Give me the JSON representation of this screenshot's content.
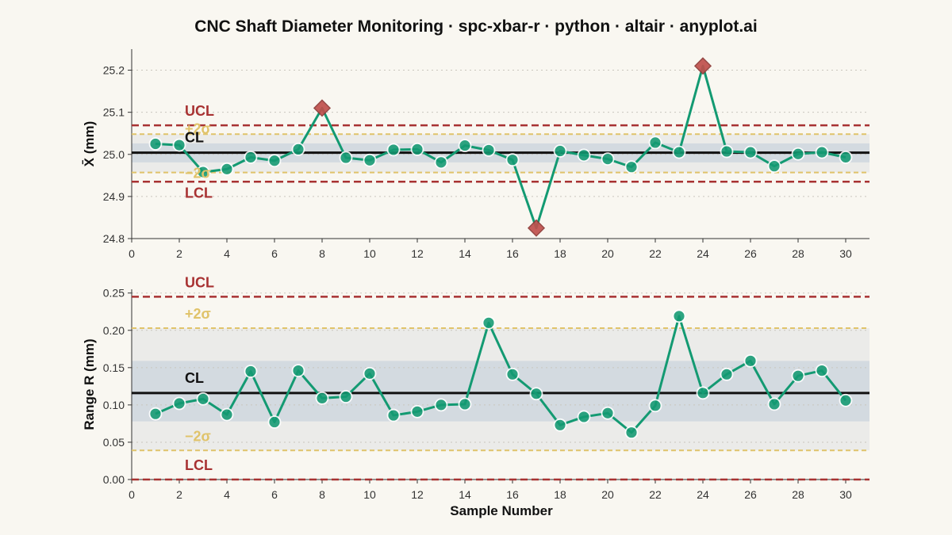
{
  "title": "CNC Shaft Diameter Monitoring · spc-xbar-r · python · altair · anyplot.ai",
  "colors": {
    "background": "#f9f7f1",
    "series": "#139a72",
    "out_of_control": "#c0504d",
    "limit": "#a83232",
    "sigma": "#e0c36a",
    "center": "#111111",
    "band_1sigma": "#d3dae0",
    "band_2sigma": "#ebebe9"
  },
  "chart_data": [
    {
      "type": "line",
      "panel": "xbar",
      "xlabel": "",
      "ylabel": "X̄ (mm)",
      "xlim": [
        0,
        31
      ],
      "ylim": [
        24.8,
        25.25
      ],
      "xticks": [
        0,
        2,
        4,
        6,
        8,
        10,
        12,
        14,
        16,
        18,
        20,
        22,
        24,
        26,
        28,
        30
      ],
      "yticks": [
        24.8,
        24.9,
        25.0,
        25.1,
        25.2
      ],
      "grid": "horizontal dotted",
      "x": [
        1,
        2,
        3,
        4,
        5,
        6,
        7,
        8,
        9,
        10,
        11,
        12,
        13,
        14,
        15,
        16,
        17,
        18,
        19,
        20,
        21,
        22,
        23,
        24,
        25,
        26,
        27,
        28,
        29,
        30
      ],
      "values": [
        25.025,
        25.022,
        24.958,
        24.965,
        24.993,
        24.985,
        25.012,
        25.11,
        24.992,
        24.986,
        25.011,
        25.012,
        24.981,
        25.021,
        25.01,
        24.987,
        24.825,
        25.008,
        24.998,
        24.989,
        24.97,
        25.028,
        25.005,
        25.21,
        25.007,
        25.005,
        24.972,
        25.001,
        25.005,
        24.993
      ],
      "out_of_control_x": [
        8,
        17,
        24
      ],
      "limits": {
        "ucl": {
          "label": "UCL",
          "value": 25.069
        },
        "plus2sigma": {
          "label": "+2σ",
          "value": 25.048
        },
        "cl": {
          "label": "CL",
          "value": 25.004
        },
        "minus2sigma": {
          "label": "−2σ",
          "value": 24.957
        },
        "lcl": {
          "label": "LCL",
          "value": 24.935
        }
      },
      "band_1sigma": [
        24.981,
        25.026
      ],
      "band_2sigma": [
        24.957,
        25.048
      ]
    },
    {
      "type": "line",
      "panel": "range",
      "xlabel": "Sample Number",
      "ylabel": "Range R (mm)",
      "xlim": [
        0,
        31
      ],
      "ylim": [
        0,
        0.255
      ],
      "xticks": [
        0,
        2,
        4,
        6,
        8,
        10,
        12,
        14,
        16,
        18,
        20,
        22,
        24,
        26,
        28,
        30
      ],
      "yticks": [
        "0.00",
        "0.05",
        "0.10",
        "0.15",
        "0.20",
        "0.25"
      ],
      "grid": "horizontal dotted",
      "x": [
        1,
        2,
        3,
        4,
        5,
        6,
        7,
        8,
        9,
        10,
        11,
        12,
        13,
        14,
        15,
        16,
        17,
        18,
        19,
        20,
        21,
        22,
        23,
        24,
        25,
        26,
        27,
        28,
        29,
        30
      ],
      "values": [
        0.088,
        0.102,
        0.108,
        0.087,
        0.145,
        0.077,
        0.146,
        0.109,
        0.111,
        0.142,
        0.086,
        0.091,
        0.1,
        0.101,
        0.21,
        0.141,
        0.115,
        0.073,
        0.084,
        0.089,
        0.063,
        0.099,
        0.219,
        0.116,
        0.141,
        0.159,
        0.101,
        0.139,
        0.146,
        0.106
      ],
      "out_of_control_x": [],
      "limits": {
        "ucl": {
          "label": "UCL",
          "value": 0.245
        },
        "plus2sigma": {
          "label": "+2σ",
          "value": 0.203
        },
        "cl": {
          "label": "CL",
          "value": 0.116
        },
        "minus2sigma": {
          "label": "−2σ",
          "value": 0.039
        },
        "lcl": {
          "label": "LCL",
          "value": 0.0
        }
      },
      "band_1sigma": [
        0.078,
        0.159
      ],
      "band_2sigma": [
        0.039,
        0.203
      ]
    }
  ]
}
